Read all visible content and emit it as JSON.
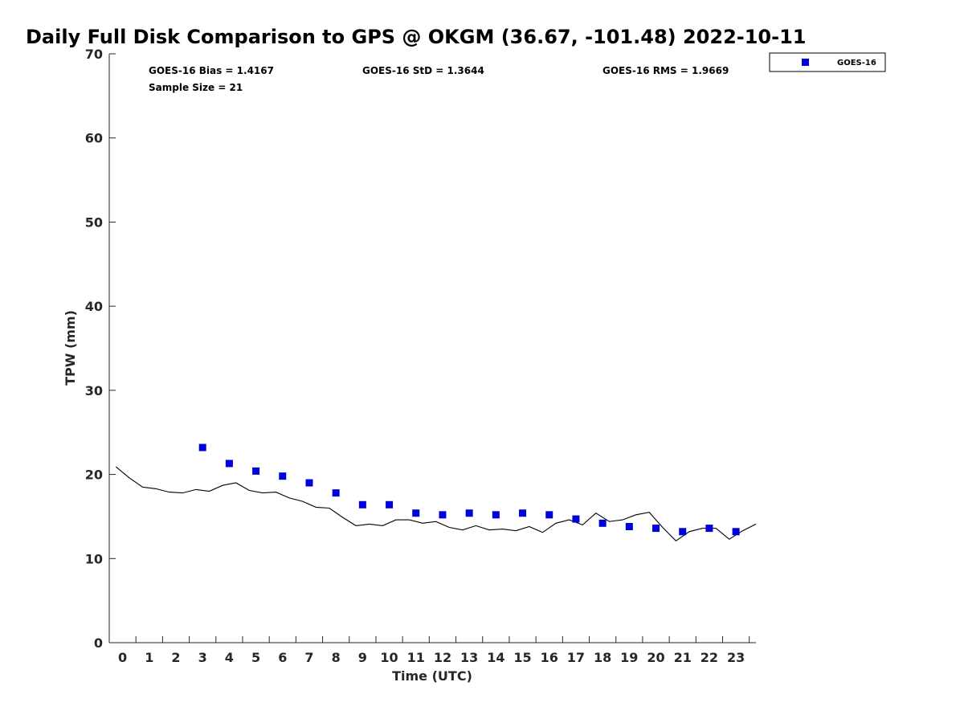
{
  "chart_data": {
    "type": "scatter",
    "title": "Daily Full Disk Comparison to GPS @ OKGM (36.67, -101.48) 2022-10-11",
    "xlabel": "Time (UTC)",
    "ylabel": "TPW (mm)",
    "xlim": [
      -0.5,
      23.75
    ],
    "ylim": [
      0,
      70
    ],
    "x_ticks": [
      0,
      1,
      2,
      3,
      4,
      5,
      6,
      7,
      8,
      9,
      10,
      11,
      12,
      13,
      14,
      15,
      16,
      17,
      18,
      19,
      20,
      21,
      22,
      23
    ],
    "y_ticks": [
      0,
      10,
      20,
      30,
      40,
      50,
      60,
      70
    ],
    "grid": false,
    "legend_position": "top-right",
    "stats": {
      "bias": "GOES-16 Bias = 1.4167",
      "std": "GOES-16 StD = 1.3644",
      "rms": "GOES-16 RMS = 1.9669",
      "sample": "Sample Size = 21"
    },
    "series": [
      {
        "name": "GOES-16",
        "kind": "markers",
        "color": "#0000dd",
        "x": [
          3,
          4,
          5,
          6,
          7,
          8,
          9,
          10,
          11,
          12,
          13,
          14,
          15,
          16,
          17,
          18,
          19,
          20,
          21,
          22,
          23
        ],
        "y": [
          23.2,
          21.3,
          20.4,
          19.8,
          19.0,
          17.8,
          16.4,
          16.4,
          15.4,
          15.2,
          15.4,
          15.2,
          15.4,
          15.2,
          14.7,
          14.2,
          13.8,
          13.6,
          13.2,
          13.6,
          13.2
        ]
      },
      {
        "kind": "line",
        "color": "#000000",
        "x": [
          -0.25,
          0.25,
          0.75,
          1.25,
          1.75,
          2.25,
          2.75,
          3.25,
          3.75,
          4.25,
          4.75,
          5.25,
          5.75,
          6.25,
          6.75,
          7.25,
          7.75,
          8.25,
          8.75,
          9.25,
          9.75,
          10.25,
          10.75,
          11.25,
          11.75,
          12.25,
          12.75,
          13.25,
          13.75,
          14.25,
          14.75,
          15.25,
          15.75,
          16.25,
          16.75,
          17.25,
          17.75,
          18.25,
          18.75,
          19.25,
          19.75,
          20.25,
          20.75,
          21.25,
          21.75,
          22.25,
          22.75,
          23.25,
          23.75
        ],
        "y": [
          20.9,
          19.6,
          18.5,
          18.3,
          17.9,
          17.8,
          18.2,
          18.0,
          18.7,
          19.0,
          18.1,
          17.8,
          17.9,
          17.2,
          16.8,
          16.1,
          16.0,
          14.9,
          13.9,
          14.1,
          13.9,
          14.6,
          14.6,
          14.2,
          14.4,
          13.7,
          13.4,
          13.9,
          13.4,
          13.5,
          13.3,
          13.8,
          13.1,
          14.2,
          14.6,
          14.0,
          15.4,
          14.4,
          14.6,
          15.2,
          15.5,
          13.7,
          12.1,
          13.2,
          13.6,
          13.6,
          12.3,
          13.3,
          14.1
        ]
      }
    ]
  }
}
